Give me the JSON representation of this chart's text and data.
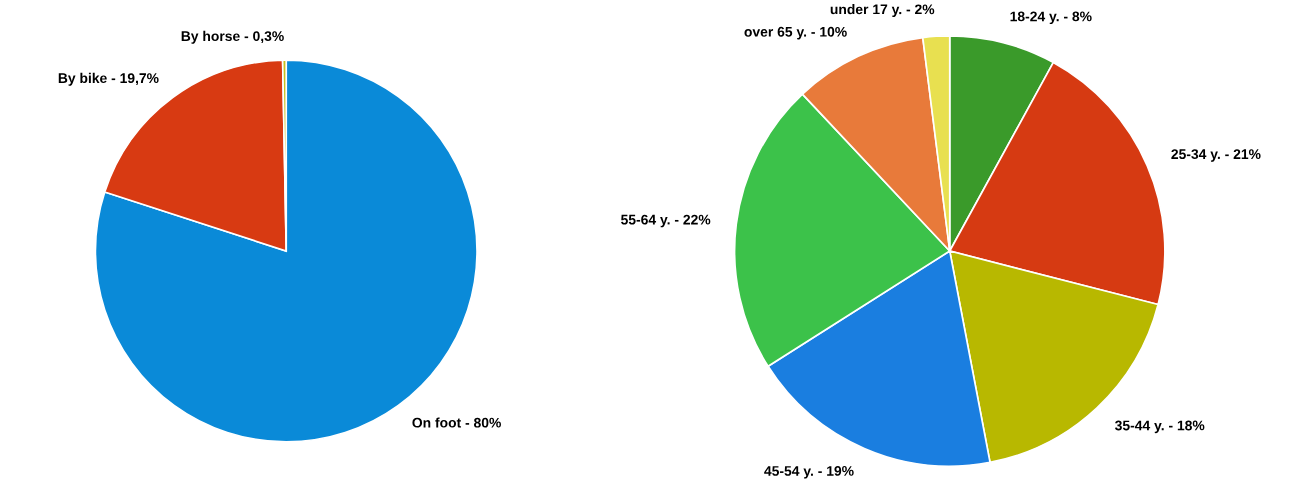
{
  "chart_data": [
    {
      "type": "pie",
      "categories": [
        "On foot - 80%",
        "By bike - 19,7%",
        "By horse - 0,3%"
      ],
      "values": [
        80,
        19.7,
        0.3
      ],
      "colors": [
        "#0a8ad8",
        "#d83a12",
        "#c8c020"
      ]
    },
    {
      "type": "pie",
      "categories": [
        "18-24 y. - 8%",
        "25-34 y. - 21%",
        "35-44 y. - 18%",
        "45-54 y. - 19%",
        "55-64 y. - 22%",
        "over 65 y. - 10%",
        "under 17 y. - 2%"
      ],
      "values": [
        8,
        21,
        18,
        19,
        22,
        10,
        2
      ],
      "colors": [
        "#3a9a2a",
        "#d63a12",
        "#b8b800",
        "#1a7ee0",
        "#3cc24a",
        "#e87a3a",
        "#e8e050"
      ]
    }
  ]
}
